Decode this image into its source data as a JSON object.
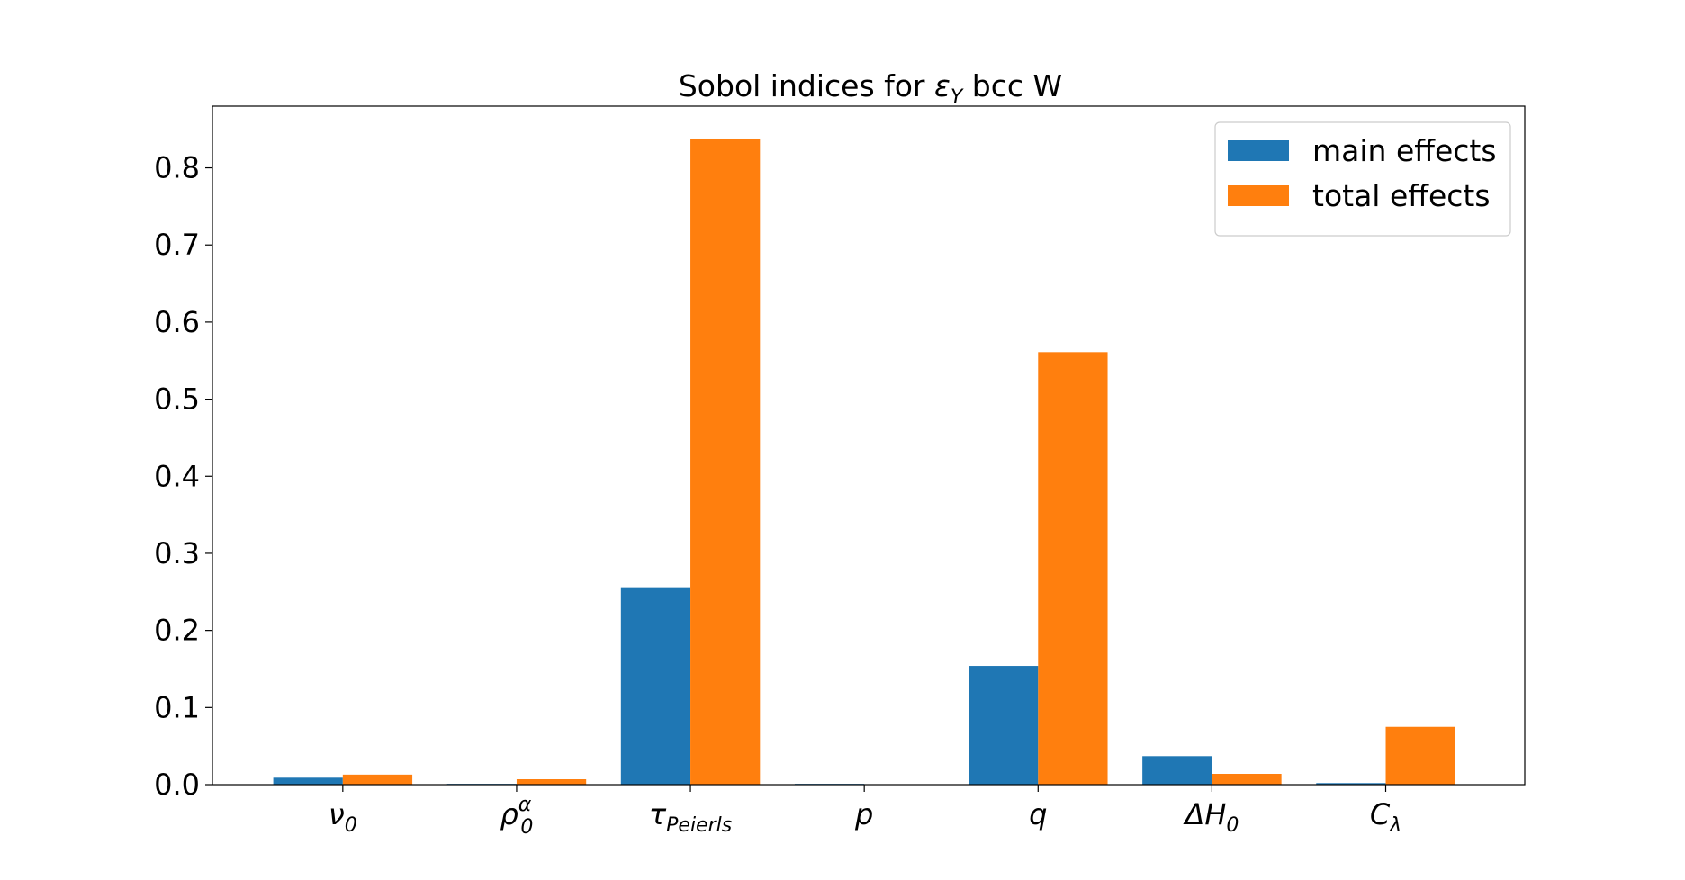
{
  "chart_data": {
    "type": "bar",
    "title": {
      "prefix": "Sobol indices for ",
      "symbol": "ε",
      "symbol_sub": "Y",
      "suffix": " bcc W"
    },
    "xlabel": "",
    "ylabel": "",
    "categories": [
      {
        "base": "ν",
        "sub": "0",
        "sup": ""
      },
      {
        "base": "ρ",
        "sub": "0",
        "sup": "α"
      },
      {
        "base": "τ",
        "sub": "Peierls",
        "sup": ""
      },
      {
        "base": "p",
        "sub": "",
        "sup": ""
      },
      {
        "base": "q",
        "sub": "",
        "sup": ""
      },
      {
        "base": "ΔH",
        "sub": "0",
        "sup": ""
      },
      {
        "base": "C",
        "sub": "λ",
        "sup": ""
      }
    ],
    "series": [
      {
        "name": "main effects",
        "color": "#1f77b4",
        "values": [
          0.009,
          0.001,
          0.256,
          0.001,
          0.154,
          0.037,
          0.002
        ]
      },
      {
        "name": "total effects",
        "color": "#ff7f0e",
        "values": [
          0.013,
          0.007,
          0.838,
          0.0,
          0.561,
          0.014,
          0.075
        ]
      }
    ],
    "ylim": [
      0,
      0.88
    ],
    "yticks": [
      "0.0",
      "0.1",
      "0.2",
      "0.3",
      "0.4",
      "0.5",
      "0.6",
      "0.7",
      "0.8"
    ],
    "grid": false,
    "legend_position": "upper right"
  }
}
